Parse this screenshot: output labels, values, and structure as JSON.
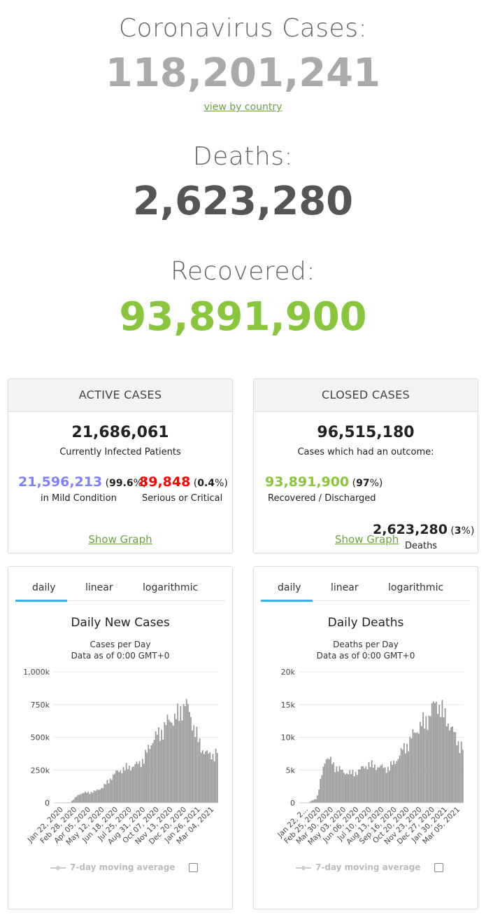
{
  "summary": {
    "cases_title": "Coronavirus Cases:",
    "cases_value": "118,201,241",
    "view_link": "view by country",
    "deaths_title": "Deaths:",
    "deaths_value": "2,623,280",
    "recovered_title": "Recovered:",
    "recovered_value": "93,891,900"
  },
  "active": {
    "header": "ACTIVE CASES",
    "total": "21,686,061",
    "total_label": "Currently Infected Patients",
    "mild_value": "21,596,213",
    "mild_pct_open": " (",
    "mild_pct": "99.6",
    "mild_pct_close": "%)",
    "mild_label": "in Mild Condition",
    "serious_value": "89,848",
    "serious_pct_open": " (",
    "serious_pct": "0.4",
    "serious_pct_close": "%)",
    "serious_label": "Serious or Critical",
    "graph_link": "Show Graph"
  },
  "closed": {
    "header": "CLOSED CASES",
    "total": "96,515,180",
    "total_label": "Cases which had an outcome:",
    "recovered_value": "93,891,900",
    "recovered_pct_open": " (",
    "recovered_pct": "97",
    "recovered_pct_close": "%)",
    "recovered_label": "Recovered / Discharged",
    "deaths_value": "2,623,280",
    "deaths_pct_open": " (",
    "deaths_pct": "3",
    "deaths_pct_close": "%)",
    "deaths_label": "Deaths",
    "graph_link": "Show Graph"
  },
  "tabs": [
    "daily",
    "linear",
    "logarithmic"
  ],
  "legend_label": "7-day moving average",
  "colors": {
    "green": "#8ac53e",
    "blue": "#8080ff",
    "red": "#ff0000",
    "bar": "#999999",
    "tab_active": "#36b3e6",
    "link": "#6aa43a"
  },
  "chart_data": [
    {
      "type": "bar",
      "title": "Daily New Cases",
      "subtitle_1": "Cases per Day",
      "subtitle_2": "Data as of 0:00 GMT+0",
      "ylim": [
        0,
        1000000
      ],
      "ytick_labels": [
        "0",
        "250k",
        "500k",
        "750k",
        "1,000k"
      ],
      "ytick_values": [
        0,
        250000,
        500000,
        750000,
        1000000
      ],
      "x_tick_labels": [
        "Jan 22, 2020",
        "Feb 28, 2020",
        "Apr 05, 2020",
        "May 12, 2020",
        "Jun 18, 2020",
        "Jul 25, 2020",
        "Aug 31, 2020",
        "Oct 07, 2020",
        "Nov 13, 2020",
        "Dec 20, 2020",
        "Jan 26, 2021",
        "Mar 04, 2021"
      ],
      "series": [
        {
          "values": [
            0,
            2000,
            5000,
            70000,
            85000,
            92000,
            130000,
            210000,
            265000,
            290000,
            300000,
            365000,
            500000,
            580000,
            660000,
            700000,
            820000,
            650000,
            450000,
            380000,
            420000
          ]
        }
      ],
      "legend": "7-day moving average"
    },
    {
      "type": "bar",
      "title": "Daily Deaths",
      "subtitle_1": "Deaths per Day",
      "subtitle_2": "Data as of 0:00 GMT+0",
      "ylim": [
        0,
        20000
      ],
      "ytick_labels": [
        "0",
        "5k",
        "10k",
        "15k",
        "20k"
      ],
      "ytick_values": [
        0,
        5000,
        10000,
        15000,
        20000
      ],
      "x_tick_labels": [
        "Jan 22, 2...",
        "Feb 25, 2020",
        "Mar 30, 2020",
        "May 03, 2020",
        "Jun 06, 2020",
        "Jul 10, 2020",
        "Aug 13, 2020",
        "Sep 16, 2020",
        "Oct 20, 2020",
        "Nov 23, 2020",
        "Dec 27, 2020",
        "Jan 30, 2021",
        "Mar 05, 2021"
      ],
      "series": [
        {
          "values": [
            0,
            50,
            800,
            7500,
            6200,
            5000,
            4800,
            5300,
            6300,
            5900,
            5600,
            6400,
            8600,
            10500,
            12500,
            14000,
            16500,
            14000,
            11000,
            9000
          ]
        }
      ],
      "legend": "7-day moving average"
    }
  ]
}
